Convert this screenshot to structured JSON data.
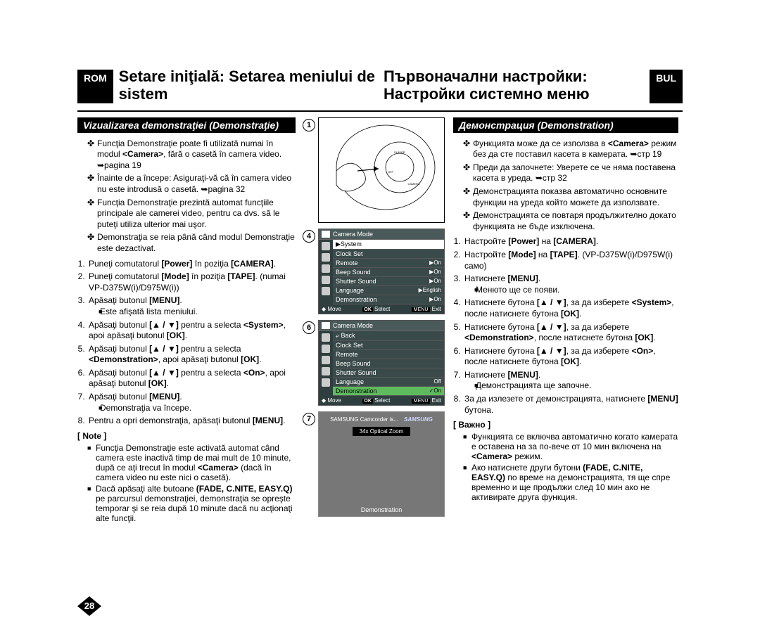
{
  "left_lang_badge": "ROM",
  "right_lang_badge": "BUL",
  "left_title": "Setare iniţială: Setarea meniului de sistem",
  "right_title": "Първоначални настройки: Настройки системно меню",
  "left_section": "Vizualizarea demonstraţiei (Demonstraţie)",
  "right_section": "Демонстрация (Demonstration)",
  "left_bullets": [
    "Funcţia Demonstraţie poate fi utilizată numai în modul <b>&lt;Camera&gt;</b>, fără o casetă în camera video. ➥pagina 19",
    "Înainte de a începe: Asiguraţi-vă că în camera video nu este introdusă o casetă. ➥pagina 32",
    "Funcţia Demonstraţie prezintă automat funcţiile principale ale camerei video, pentru ca dvs. să le puteţi utiliza ulterior mai uşor.",
    "Demonstraţia se reia până când modul Demonstraţie este dezactivat."
  ],
  "left_steps": [
    "Puneţi comutatorul <b>[Power]</b> în poziţia <b>[CAMERA]</b>.",
    "Puneţi comutatorul <b>[Mode]</b> în poziţia <b>[TAPE]</b>. (numai VP-D375W(i)/D975W(i))",
    "Apăsaţi butonul <b>[MENU]</b>.",
    "Apăsaţi butonul <b>[▲ / ▼]</b> pentru a selecta <b>&lt;System&gt;</b>, apoi apăsaţi butonul <b>[OK]</b>.",
    "Apăsaţi butonul <b>[▲ / ▼]</b> pentru a selecta <b>&lt;Demonstration&gt;</b>, apoi apăsaţi butonul <b>[OK]</b>.",
    "Apăsaţi butonul <b>[▲ / ▼]</b> pentru a selecta <b>&lt;On&gt;</b>, apoi apăsaţi butonul <b>[OK]</b>.",
    "Apăsaţi butonul <b>[MENU]</b>.",
    "Pentru a opri demonstraţia, apăsaţi butonul <b>[MENU]</b>."
  ],
  "left_sub_after3": "Este afişată lista meniului.",
  "left_sub_after7": "Demonstraţia va începe.",
  "left_note_label": "[ Note ]",
  "left_notes": [
    "Funcţia Demonstraţie este activată automat când camera este inactivă timp de mai mult de 10 minute, după ce aţi trecut în modul <b>&lt;Camera&gt;</b> (dacă în camera video nu este nici o casetă).",
    "Dacă apăsaţi alte butoane <b>(FADE, C.NITE, EASY.Q)</b> pe parcursul demonstraţiei, demonstraţia se opreşte temporar şi se reia după 10 minute dacă nu acţionaţi alte funcţii."
  ],
  "right_bullets": [
    "Функцията може да се използва в <b>&lt;Camera&gt;</b> режим без да сте поставил касета в камерата. ➥стр 19",
    "Преди да започнете: Уверете се че няма поставена касета в уреда. ➥стр 32",
    "Демонстрацията показва автоматично основните функции на уреда който можете да използвате.",
    "Демонстрацията се повтаря продължително докато функцията не бъде изключена."
  ],
  "right_steps": [
    "Настройте <b>[Power]</b> на <b>[CAMERA]</b>.",
    "Настройте <b>[Mode]</b> на <b>[TAPE]</b>. (VP-D375W(i)/D975W(i) само)",
    "Натиснете <b>[MENU]</b>.",
    "Натиснете бутона <b>[▲ / ▼]</b>, за да изберете <b>&lt;System&gt;</b>, после натиснете бутона <b>[OK]</b>.",
    "Натиснете бутона <b>[▲ / ▼]</b>, за да изберете <b>&lt;Demonstration&gt;</b>, после натиснете бутона <b>[OK]</b>.",
    "Натиснете бутона <b>[▲ / ▼]</b>, за да изберете <b>&lt;On&gt;</b>, после натиснете бутона <b>[OK]</b>.",
    "Натиснете <b>[MENU]</b>.",
    "За да излезете от демонстрацията, натиснете <b>[MENU]</b> бутона."
  ],
  "right_sub_after3": "Менюто ще се появи.",
  "right_sub_after7": "Демонстрацията ще започне.",
  "right_note_label": "[ Важно ]",
  "right_notes": [
    "Функцията се включва автоматично когато камерата е оставена на за по-вече от 10 мин включена на <b>&lt;Camera&gt;</b> режим.",
    "Ако натиснете други бутони <b>(FADE, C.NITE, EASY.Q)</b> по време на демонстрацията, тя ще спре временно и ще продължи след 10 мин ако не активирате друга функция."
  ],
  "page_number": "28",
  "menu4": {
    "title": "Camera Mode",
    "highlight": "▶System",
    "items": [
      {
        "lbl": "Clock Set",
        "val": ""
      },
      {
        "lbl": "Remote",
        "val": "▶On"
      },
      {
        "lbl": "Beep Sound",
        "val": "▶On"
      },
      {
        "lbl": "Shutter Sound",
        "val": "▶On"
      },
      {
        "lbl": "Language",
        "val": "▶English"
      },
      {
        "lbl": "Demonstration",
        "val": "▶On"
      }
    ],
    "footer": {
      "move": "Move",
      "select": "Select",
      "exit": "Exit"
    }
  },
  "menu6": {
    "title": "Camera Mode",
    "back": "⤶ Back",
    "items": [
      {
        "lbl": "Clock Set",
        "val": ""
      },
      {
        "lbl": "Remote",
        "val": ""
      },
      {
        "lbl": "Beep Sound",
        "val": ""
      },
      {
        "lbl": "Shutter Sound",
        "val": ""
      },
      {
        "lbl": "Language",
        "val": "Off"
      },
      {
        "lbl": "Demonstration",
        "val": "✓On",
        "hl": true
      }
    ],
    "footer": {
      "move": "Move",
      "select": "Select",
      "exit": "Exit"
    }
  },
  "demo7": {
    "msg": "SAMSUNG Camcorder is...",
    "logo": "SAMSUNG",
    "zoom": "34x Optical Zoom",
    "label": "Demonstration"
  },
  "fig_labels": {
    "one": "1",
    "four": "4",
    "six": "6",
    "seven": "7"
  },
  "footer_codes": {
    "ok": "OK",
    "menu": "MENU"
  }
}
